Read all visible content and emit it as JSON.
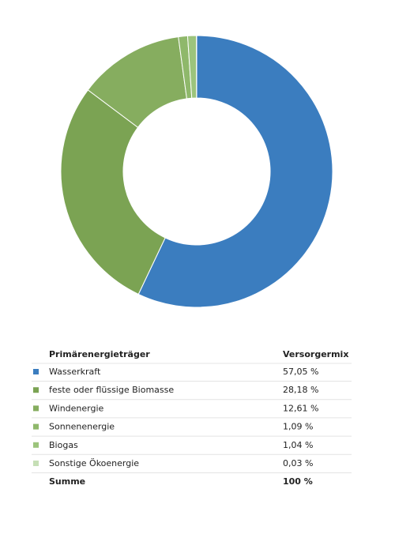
{
  "chart_data": {
    "type": "donut",
    "categories": [
      "Wasserkraft",
      "feste oder flüssige Biomasse",
      "Windenergie",
      "Sonnenenergie",
      "Biogas",
      "Sonstige Ökoenergie"
    ],
    "values": [
      57.05,
      28.18,
      12.61,
      1.09,
      1.04,
      0.03
    ],
    "value_labels": [
      "57,05 %",
      "28,18 %",
      "12,61 %",
      "1,09 %",
      "1,04 %",
      "0,03 %"
    ],
    "colors": [
      "#3b7dbf",
      "#7ba353",
      "#86ad5f",
      "#8fb86b",
      "#9cc47c",
      "#c6dfb6"
    ]
  },
  "table": {
    "header": [
      "Primärenergieträger",
      "Versorgermix"
    ],
    "total": [
      "Summe",
      "100 %"
    ]
  }
}
